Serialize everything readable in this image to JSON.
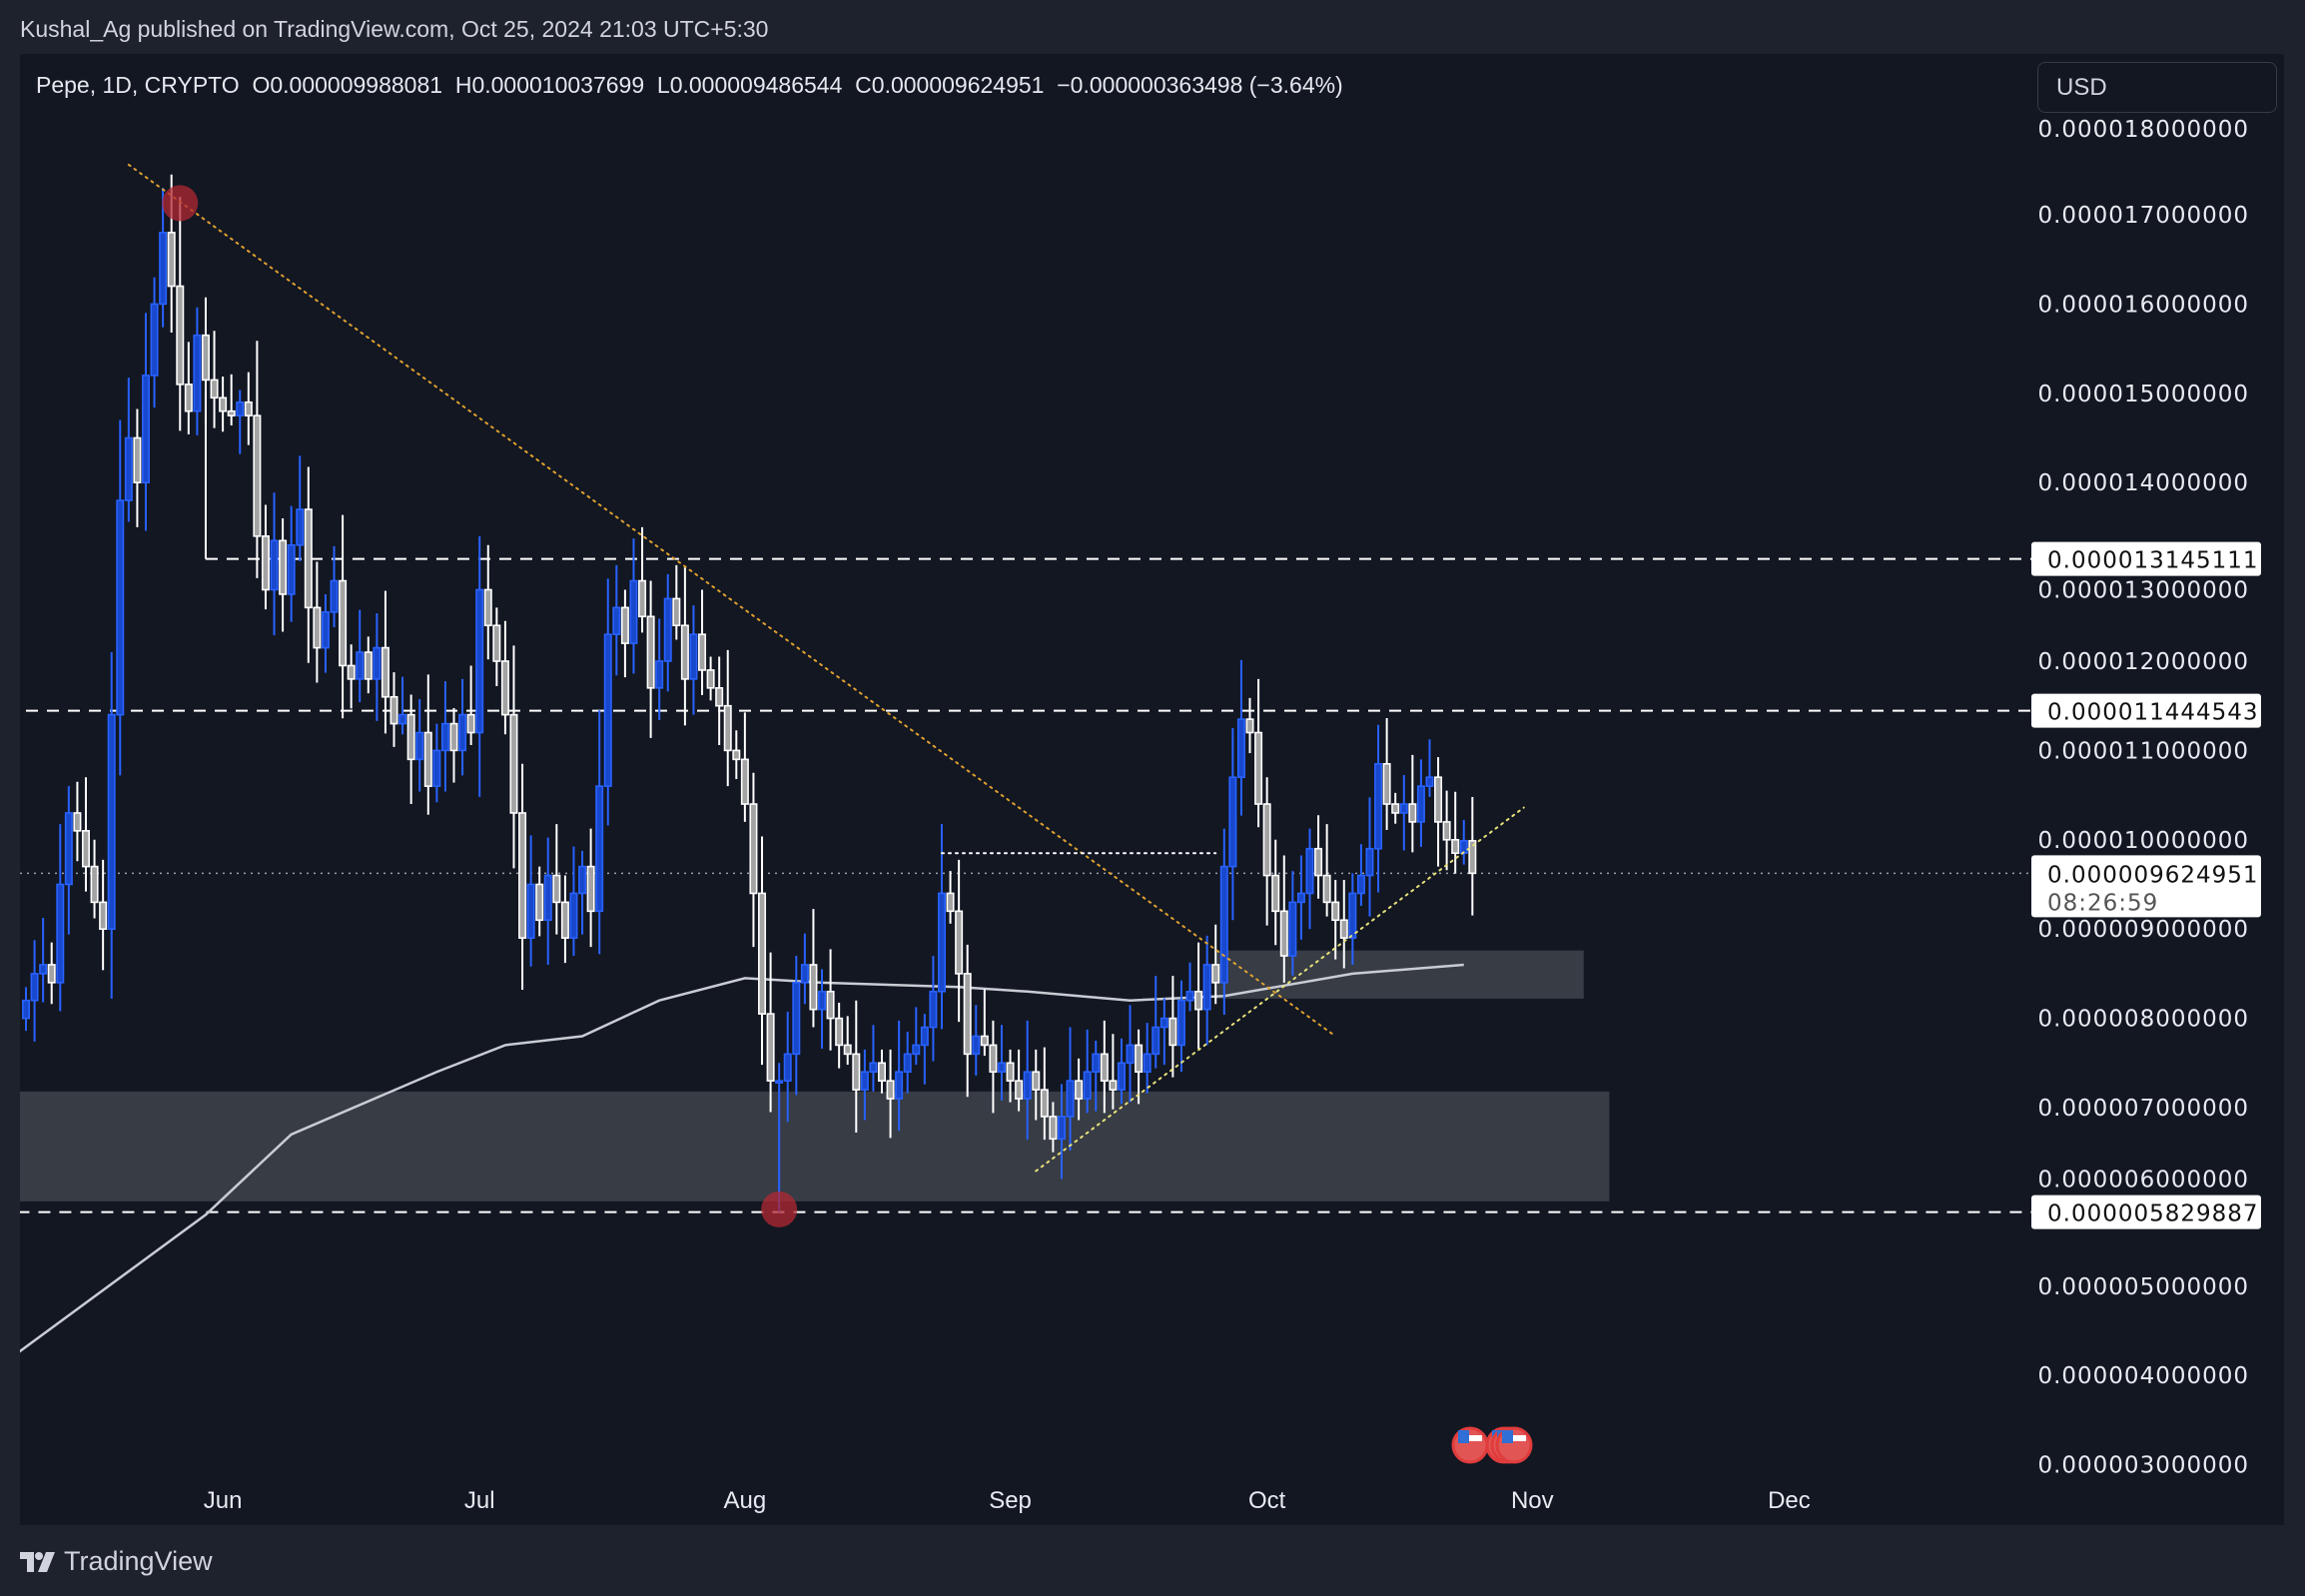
{
  "header": {
    "published": "Kushal_Ag published on TradingView.com, Oct 25, 2024 21:03 UTC+5:30"
  },
  "legend": {
    "symbol": "Pepe, 1D, CRYPTO",
    "open": "O0.000009988081",
    "high": "H0.000010037699",
    "low": "L0.000009486544",
    "close": "C0.000009624951",
    "change": "−0.000000363498 (−3.64%)"
  },
  "currency_button": "USD",
  "brand": "TradingView",
  "colors": {
    "up": "#2962ff",
    "up_fill": "#1848cc",
    "down": "#ffffff",
    "down_fill": "#a3a3a3",
    "background": "#121722",
    "zone": "#3a3e48",
    "trend_down": "#e0a030",
    "trend_up": "#e8e07a",
    "circle": "#b22833"
  },
  "chart_data": {
    "type": "candlestick",
    "interval": "1D",
    "start_date": "2024-05-09",
    "closes": [
      8.2e-06,
      8.5e-06,
      8.6e-06,
      8.4e-06,
      9.5e-06,
      1.03e-05,
      1.01e-05,
      9.7e-06,
      9.3e-06,
      9e-06,
      1.14e-05,
      1.38e-05,
      1.45e-05,
      1.4e-05,
      1.52e-05,
      1.6e-05,
      1.68e-05,
      1.62e-05,
      1.51e-05,
      1.48e-05,
      1.565e-05,
      1.515e-05,
      1.495e-05,
      1.48e-05,
      1.475e-05,
      1.49e-05,
      1.475e-05,
      1.34e-05,
      1.28e-05,
      1.335e-05,
      1.275e-05,
      1.33e-05,
      1.37e-05,
      1.26e-05,
      1.215e-05,
      1.255e-05,
      1.29e-05,
      1.195e-05,
      1.18e-05,
      1.21e-05,
      1.18e-05,
      1.215e-05,
      1.16e-05,
      1.13e-05,
      1.14e-05,
      1.09e-05,
      1.12e-05,
      1.06e-05,
      1.1e-05,
      1.13e-05,
      1.1e-05,
      1.14e-05,
      1.12e-05,
      1.28e-05,
      1.24e-05,
      1.2e-05,
      1.14e-05,
      1.03e-05,
      8.9e-06,
      9.5e-06,
      9.1e-06,
      9.6e-06,
      9.3e-06,
      8.9e-06,
      9.4e-06,
      9.7e-06,
      9.2e-06,
      1.06e-05,
      1.23e-05,
      1.26e-05,
      1.22e-05,
      1.29e-05,
      1.25e-05,
      1.17e-05,
      1.2e-05,
      1.27e-05,
      1.24e-05,
      1.18e-05,
      1.23e-05,
      1.19e-05,
      1.17e-05,
      1.15e-05,
      1.1e-05,
      1.09e-05,
      1.04e-05,
      9.4e-06,
      8.05e-06,
      7.3e-06,
      7.3e-06,
      7.6e-06,
      8.4e-06,
      8.6e-06,
      8.1e-06,
      8.3e-06,
      8e-06,
      7.7e-06,
      7.6e-06,
      7.2e-06,
      7.4e-06,
      7.5e-06,
      7.3e-06,
      7.1e-06,
      7.4e-06,
      7.6e-06,
      7.7e-06,
      7.9e-06,
      8.3e-06,
      9.4e-06,
      9.2e-06,
      8.5e-06,
      7.6e-06,
      7.8e-06,
      7.7e-06,
      7.4e-06,
      7.5e-06,
      7.3e-06,
      7.1e-06,
      7.4e-06,
      7.2e-06,
      6.9e-06,
      6.65e-06,
      6.9e-06,
      7.3e-06,
      7.1e-06,
      7.4e-06,
      7.6e-06,
      7.3e-06,
      7.2e-06,
      7.5e-06,
      7.7e-06,
      7.4e-06,
      7.6e-06,
      7.9e-06,
      8e-06,
      7.7e-06,
      8.2e-06,
      8.3e-06,
      8.1e-06,
      8.6e-06,
      8.4e-06,
      9.7e-06,
      1.07e-05,
      1.135e-05,
      1.12e-05,
      1.04e-05,
      9.6e-06,
      9.2e-06,
      8.7e-06,
      9.3e-06,
      9.4e-06,
      9.9e-06,
      9.6e-06,
      9.3e-06,
      9.1e-06,
      8.9e-06,
      9.4e-06,
      9.6e-06,
      9.9e-06,
      1.085e-05,
      1.04e-05,
      1.03e-05,
      1.04e-05,
      1.02e-05,
      1.06e-05,
      1.07e-05,
      1.02e-05,
      1e-05,
      9.85e-06,
      9.988081e-06,
      9.624951e-06
    ],
    "extremes": [
      {
        "date": "2024-05-27",
        "high": 1.72e-05
      },
      {
        "date": "2024-08-05",
        "low": 5.829887e-06
      }
    ],
    "moving_average": [
      [
        "2024-05-08",
        4.25e-06
      ],
      [
        "2024-05-30",
        5.8e-06
      ],
      [
        "2024-06-09",
        6.7e-06
      ],
      [
        "2024-06-26",
        7.4e-06
      ],
      [
        "2024-07-04",
        7.7e-06
      ],
      [
        "2024-07-13",
        7.8e-06
      ],
      [
        "2024-07-22",
        8.2e-06
      ],
      [
        "2024-08-01",
        8.45e-06
      ],
      [
        "2024-08-10",
        8.4e-06
      ],
      [
        "2024-08-26",
        8.35e-06
      ],
      [
        "2024-09-03",
        8.3e-06
      ],
      [
        "2024-09-15",
        8.2e-06
      ],
      [
        "2024-09-26",
        8.25e-06
      ],
      [
        "2024-10-02",
        8.35e-06
      ],
      [
        "2024-10-11",
        8.5e-06
      ],
      [
        "2024-10-24",
        8.6e-06
      ]
    ],
    "ylim": [
      2.9e-06,
      1.81e-05
    ],
    "y_ticks": [
      "0.000003000000",
      "0.000004000000",
      "0.000005000000",
      "0.000006000000",
      "0.000007000000",
      "0.000008000000",
      "0.000009000000",
      "0.000010000000",
      "0.000011000000",
      "0.000012000000",
      "0.000013000000",
      "0.000014000000",
      "0.000015000000",
      "0.000016000000",
      "0.000017000000",
      "0.000018000000"
    ],
    "x_ticks": [
      [
        "2024-06-01",
        "Jun"
      ],
      [
        "2024-07-01",
        "Jul"
      ],
      [
        "2024-08-01",
        "Aug"
      ],
      [
        "2024-09-01",
        "Sep"
      ],
      [
        "2024-10-01",
        "Oct"
      ],
      [
        "2024-11-01",
        "Nov"
      ],
      [
        "2024-12-01",
        "Dec"
      ]
    ],
    "horizontal_levels": [
      {
        "value": 1.3145111e-05,
        "label": "0.000013145111",
        "from": "2024-05-30",
        "style": "dashed"
      },
      {
        "value": 1.1444543e-05,
        "label": "0.000011444543",
        "from": "2024-05-09",
        "style": "dashed"
      },
      {
        "value": 5.829887e-06,
        "label": "0.000005829887",
        "from": "2024-05-08",
        "style": "dashed"
      }
    ],
    "last_price": {
      "value": 9.624951e-06,
      "label": "0.000009624951",
      "countdown": "08:26:59"
    },
    "trendlines": [
      {
        "kind": "down",
        "from": [
          "2024-05-21",
          1.756e-05
        ],
        "to": [
          "2024-10-09",
          7.8e-06
        ]
      },
      {
        "kind": "up",
        "from": [
          "2024-09-04",
          6.29e-06
        ],
        "to": [
          "2024-10-31",
          1.036e-05
        ]
      },
      {
        "kind": "range-top",
        "from": [
          "2024-08-24",
          9.85e-06
        ],
        "to": [
          "2024-09-25",
          9.85e-06
        ]
      }
    ],
    "zones": [
      {
        "from": "2024-05-08",
        "to": "2024-11-10",
        "top": 7.18e-06,
        "bottom": 5.95e-06
      },
      {
        "from": "2024-09-25",
        "to": "2024-11-07",
        "top": 8.76e-06,
        "bottom": 8.22e-06
      }
    ],
    "markers": [
      {
        "date": "2024-05-27",
        "value": 1.713e-05
      },
      {
        "date": "2024-08-05",
        "value": 5.86e-06
      }
    ],
    "events": [
      "2024-10-24",
      "2024-10-27",
      "2024-10-28",
      "2024-10-29"
    ]
  }
}
